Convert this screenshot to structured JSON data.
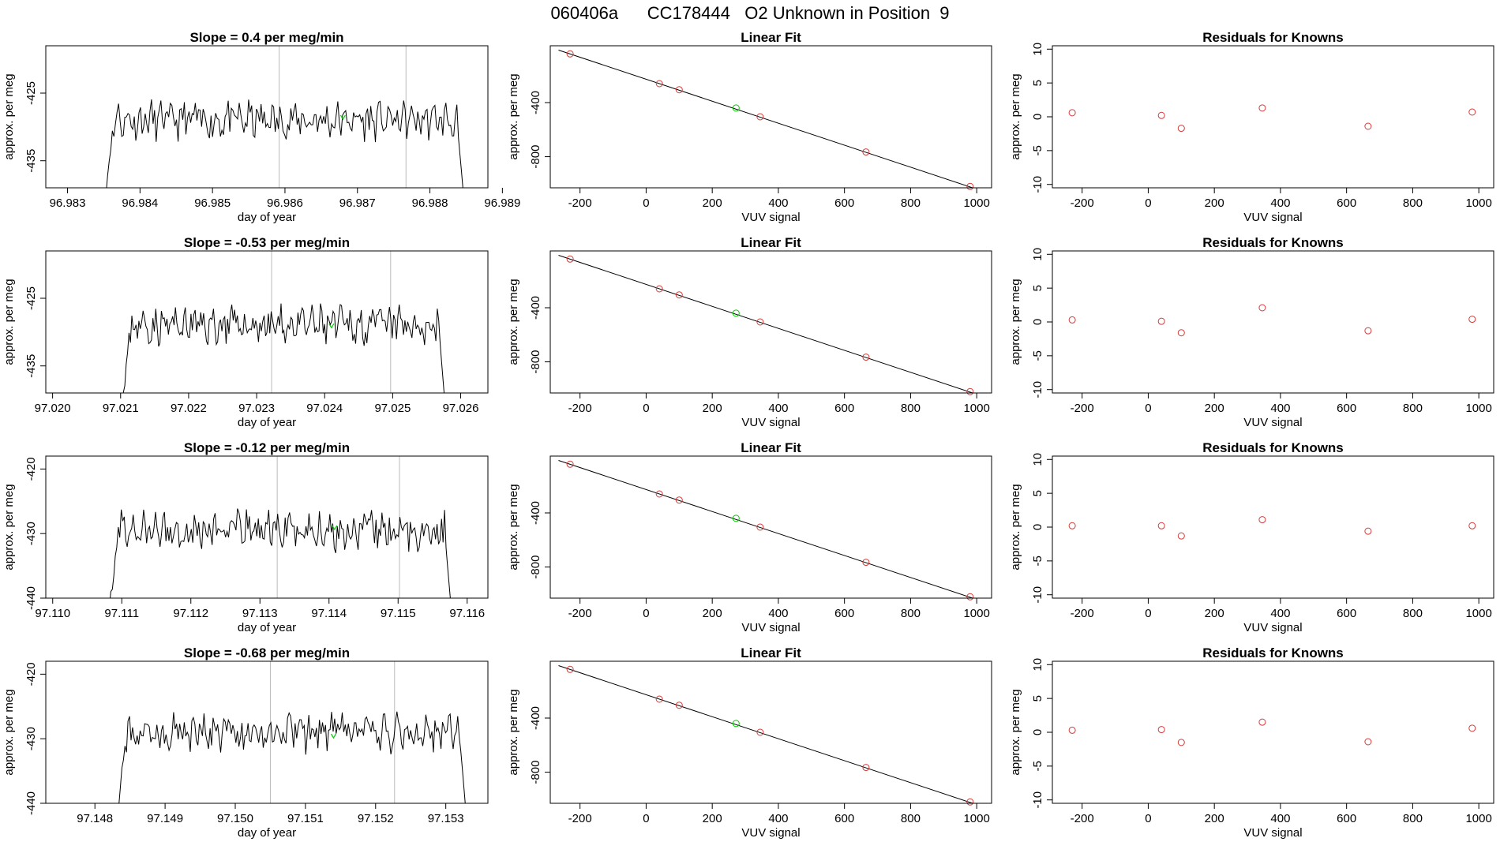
{
  "page": {
    "title": "060406a      CC178444   O2 Unknown in Position  9"
  },
  "colors": {
    "series": "#000000",
    "marker_green": "#00cc00",
    "marker_red": "#d43a3a",
    "vline": "#bbbbbb"
  },
  "chart_data": [
    {
      "type": "line",
      "title": "Slope =  0.4  per meg/min",
      "xlabel": "day of year",
      "ylabel": "approx. per meg",
      "xlim": [
        96.9827,
        96.9888
      ],
      "ylim": [
        -439,
        -418
      ],
      "xticks": [
        96.983,
        96.984,
        96.985,
        96.986,
        96.987,
        96.988,
        96.989
      ],
      "xtick_labels": [
        "96.983",
        "96.984",
        "96.985",
        "96.986",
        "96.987",
        "96.988",
        "96.989"
      ],
      "yticks": [
        -425,
        -435
      ],
      "ytick_labels": [
        "-425",
        "-435"
      ],
      "vlines": [
        96.98592,
        96.98767
      ],
      "start": 96.98351,
      "end": 96.98848,
      "base": -429,
      "amp": 1.5,
      "seed": 11,
      "marker": {
        "x": 96.9868,
        "y": -428.5
      }
    },
    {
      "type": "line",
      "title": "Slope =  -0.53  per meg/min",
      "xlabel": "day of year",
      "ylabel": "approx. per meg",
      "xlim": [
        97.0199,
        97.0264
      ],
      "ylim": [
        -439,
        -418
      ],
      "xticks": [
        97.02,
        97.021,
        97.022,
        97.023,
        97.024,
        97.025,
        97.026
      ],
      "xtick_labels": [
        "97.020",
        "97.021",
        "97.022",
        "97.023",
        "97.024",
        "97.025",
        "97.026"
      ],
      "yticks": [
        -425,
        -435
      ],
      "ytick_labels": [
        "-425",
        "-435"
      ],
      "vlines": [
        97.02322,
        97.02497
      ],
      "start": 97.02102,
      "end": 97.02578,
      "base": -429,
      "amp": 1.5,
      "seed": 23,
      "marker": {
        "x": 97.0241,
        "y": -429
      }
    },
    {
      "type": "line",
      "title": "Slope =  -0.12  per meg/min",
      "xlabel": "day of year",
      "ylabel": "approx. per meg",
      "xlim": [
        97.1099,
        97.1163
      ],
      "ylim": [
        -440,
        -418
      ],
      "xticks": [
        97.11,
        97.111,
        97.112,
        97.113,
        97.114,
        97.115,
        97.116
      ],
      "xtick_labels": [
        "97.110",
        "97.111",
        "97.112",
        "97.113",
        "97.114",
        "97.115",
        "97.116"
      ],
      "yticks": [
        -420,
        -430,
        -440
      ],
      "ytick_labels": [
        "-420",
        "-430",
        "-440"
      ],
      "vlines": [
        97.11325,
        97.11502
      ],
      "start": 97.11082,
      "end": 97.11578,
      "base": -429.5,
      "amp": 1.6,
      "seed": 37,
      "marker": {
        "x": 97.11408,
        "y": -429
      }
    },
    {
      "type": "line",
      "title": "Slope =  -0.68  per meg/min",
      "xlabel": "day of year",
      "ylabel": "approx. per meg",
      "xlim": [
        97.1473,
        97.1536
      ],
      "ylim": [
        -440,
        -418
      ],
      "xticks": [
        97.148,
        97.149,
        97.15,
        97.151,
        97.152,
        97.153
      ],
      "xtick_labels": [
        "97.148",
        "97.149",
        "97.150",
        "97.151",
        "97.152",
        "97.153"
      ],
      "yticks": [
        -420,
        -430,
        -440
      ],
      "ytick_labels": [
        "-420",
        "-430",
        "-440"
      ],
      "vlines": [
        97.1505,
        97.15227
      ],
      "start": 97.14832,
      "end": 97.1533,
      "base": -429,
      "amp": 1.6,
      "seed": 53,
      "marker": {
        "x": 97.1514,
        "y": -429.5
      }
    },
    {
      "type": "scatter",
      "title": "Linear Fit",
      "xlabel": "VUV signal",
      "ylabel": "approx. per meg",
      "xlim": [
        -290,
        1045
      ],
      "ylim": [
        -1030,
        20
      ],
      "xticks": [
        -200,
        0,
        200,
        400,
        600,
        800,
        1000
      ],
      "xtick_labels": [
        "-200",
        "0",
        "200",
        "400",
        "600",
        "800",
        "1000"
      ],
      "yticks": [
        -400,
        -800
      ],
      "ytick_labels": [
        "-400",
        "-800"
      ],
      "points": [
        [
          -230,
          -40
        ],
        [
          40,
          -260
        ],
        [
          100,
          -305
        ],
        [
          345,
          -505
        ],
        [
          665,
          -765
        ],
        [
          980,
          -1020
        ]
      ],
      "highlight": [
        [
          272,
          -440
        ]
      ],
      "fit": [
        [
          -265,
          -12
        ],
        [
          1000,
          -1040
        ]
      ]
    },
    {
      "type": "scatter",
      "title": "Linear Fit",
      "xlabel": "VUV signal",
      "ylabel": "approx. per meg",
      "xlim": [
        -290,
        1045
      ],
      "ylim": [
        -1030,
        20
      ],
      "xticks": [
        -200,
        0,
        200,
        400,
        600,
        800,
        1000
      ],
      "xtick_labels": [
        "-200",
        "0",
        "200",
        "400",
        "600",
        "800",
        "1000"
      ],
      "yticks": [
        -400,
        -800
      ],
      "ytick_labels": [
        "-400",
        "-800"
      ],
      "points": [
        [
          -230,
          -40
        ],
        [
          40,
          -260
        ],
        [
          100,
          -305
        ],
        [
          345,
          -505
        ],
        [
          665,
          -765
        ],
        [
          980,
          -1020
        ]
      ],
      "highlight": [
        [
          272,
          -440
        ]
      ],
      "fit": [
        [
          -265,
          -12
        ],
        [
          1000,
          -1040
        ]
      ]
    },
    {
      "type": "scatter",
      "title": "Linear Fit",
      "xlabel": "VUV signal",
      "ylabel": "approx. per meg",
      "xlim": [
        -290,
        1045
      ],
      "ylim": [
        -1030,
        20
      ],
      "xticks": [
        -200,
        0,
        200,
        400,
        600,
        800,
        1000
      ],
      "xtick_labels": [
        "-200",
        "0",
        "200",
        "400",
        "600",
        "800",
        "1000"
      ],
      "yticks": [
        -400,
        -800
      ],
      "ytick_labels": [
        "-400",
        "-800"
      ],
      "points": [
        [
          -230,
          -40
        ],
        [
          40,
          -260
        ],
        [
          100,
          -305
        ],
        [
          345,
          -505
        ],
        [
          665,
          -765
        ],
        [
          980,
          -1020
        ]
      ],
      "highlight": [
        [
          272,
          -440
        ]
      ],
      "fit": [
        [
          -265,
          -12
        ],
        [
          1000,
          -1040
        ]
      ]
    },
    {
      "type": "scatter",
      "title": "Linear Fit",
      "xlabel": "VUV signal",
      "ylabel": "approx. per meg",
      "xlim": [
        -290,
        1045
      ],
      "ylim": [
        -1030,
        20
      ],
      "xticks": [
        -200,
        0,
        200,
        400,
        600,
        800,
        1000
      ],
      "xtick_labels": [
        "-200",
        "0",
        "200",
        "400",
        "600",
        "800",
        "1000"
      ],
      "yticks": [
        -400,
        -800
      ],
      "ytick_labels": [
        "-400",
        "-800"
      ],
      "points": [
        [
          -230,
          -40
        ],
        [
          40,
          -260
        ],
        [
          100,
          -305
        ],
        [
          345,
          -505
        ],
        [
          665,
          -765
        ],
        [
          980,
          -1020
        ]
      ],
      "highlight": [
        [
          272,
          -440
        ]
      ],
      "fit": [
        [
          -265,
          -12
        ],
        [
          1000,
          -1040
        ]
      ]
    },
    {
      "type": "scatter",
      "title": "Residuals for Knowns",
      "xlabel": "VUV signal",
      "ylabel": "approx. per meg",
      "xlim": [
        -290,
        1045
      ],
      "ylim": [
        -10.5,
        10.5
      ],
      "xticks": [
        -200,
        0,
        200,
        400,
        600,
        800,
        1000
      ],
      "xtick_labels": [
        "-200",
        "0",
        "200",
        "400",
        "600",
        "800",
        "1000"
      ],
      "yticks": [
        10,
        5,
        0,
        -5,
        -10
      ],
      "ytick_labels": [
        "10",
        "5",
        "0",
        "-5",
        "-10"
      ],
      "points": [
        [
          -230,
          0.6
        ],
        [
          40,
          0.2
        ],
        [
          100,
          -1.7
        ],
        [
          345,
          1.3
        ],
        [
          665,
          -1.4
        ],
        [
          980,
          0.7
        ]
      ]
    },
    {
      "type": "scatter",
      "title": "Residuals for Knowns",
      "xlabel": "VUV signal",
      "ylabel": "approx. per meg",
      "xlim": [
        -290,
        1045
      ],
      "ylim": [
        -10.5,
        10.5
      ],
      "xticks": [
        -200,
        0,
        200,
        400,
        600,
        800,
        1000
      ],
      "xtick_labels": [
        "-200",
        "0",
        "200",
        "400",
        "600",
        "800",
        "1000"
      ],
      "yticks": [
        10,
        5,
        0,
        -5,
        -10
      ],
      "ytick_labels": [
        "10",
        "5",
        "0",
        "-5",
        "-10"
      ],
      "points": [
        [
          -230,
          0.3
        ],
        [
          40,
          0.1
        ],
        [
          100,
          -1.6
        ],
        [
          345,
          2.1
        ],
        [
          665,
          -1.3
        ],
        [
          980,
          0.4
        ]
      ]
    },
    {
      "type": "scatter",
      "title": "Residuals for Knowns",
      "xlabel": "VUV signal",
      "ylabel": "approx. per meg",
      "xlim": [
        -290,
        1045
      ],
      "ylim": [
        -10.5,
        10.5
      ],
      "xticks": [
        -200,
        0,
        200,
        400,
        600,
        800,
        1000
      ],
      "xtick_labels": [
        "-200",
        "0",
        "200",
        "400",
        "600",
        "800",
        "1000"
      ],
      "yticks": [
        10,
        5,
        0,
        -5,
        -10
      ],
      "ytick_labels": [
        "10",
        "5",
        "0",
        "-5",
        "-10"
      ],
      "points": [
        [
          -230,
          0.2
        ],
        [
          40,
          0.2
        ],
        [
          100,
          -1.3
        ],
        [
          345,
          1.1
        ],
        [
          665,
          -0.6
        ],
        [
          980,
          0.2
        ]
      ]
    },
    {
      "type": "scatter",
      "title": "Residuals for Knowns",
      "xlabel": "VUV signal",
      "ylabel": "approx. per meg",
      "xlim": [
        -290,
        1045
      ],
      "ylim": [
        -10.5,
        10.5
      ],
      "xticks": [
        -200,
        0,
        200,
        400,
        600,
        800,
        1000
      ],
      "xtick_labels": [
        "-200",
        "0",
        "200",
        "400",
        "600",
        "800",
        "1000"
      ],
      "yticks": [
        10,
        5,
        0,
        -5,
        -10
      ],
      "ytick_labels": [
        "10",
        "5",
        "0",
        "-5",
        "-10"
      ],
      "points": [
        [
          -230,
          0.3
        ],
        [
          40,
          0.4
        ],
        [
          100,
          -1.5
        ],
        [
          345,
          1.5
        ],
        [
          665,
          -1.4
        ],
        [
          980,
          0.6
        ]
      ]
    }
  ]
}
